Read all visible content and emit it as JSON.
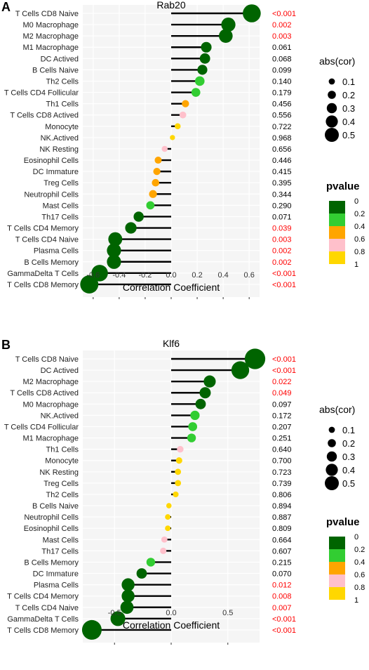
{
  "charts": [
    {
      "panel_label": "A",
      "title": "Rab20",
      "xlabel": "Correlation Coefficient",
      "x_ticks": [
        "-0.6",
        "-0.4",
        "-0.2",
        "0.0",
        "0.2",
        "0.4",
        "0.6"
      ]
    },
    {
      "panel_label": "B",
      "title": "Klf6",
      "xlabel": "Correlation Coefficient",
      "x_ticks": [
        "-0.5",
        "0.0",
        "0.5"
      ]
    }
  ],
  "legend_size": {
    "title": "abs(cor)",
    "labels": [
      "0.1",
      "0.2",
      "0.3",
      "0.4",
      "0.5"
    ]
  },
  "legend_color": {
    "title": "pvalue",
    "labels": [
      "0",
      "0.2",
      "0.4",
      "0.6",
      "0.8",
      "1"
    ],
    "colors": [
      "#006400",
      "#32cd32",
      "#ffa500",
      "#ffc0cb",
      "#ffd700"
    ]
  },
  "colors": {
    "panel_bg": "#f5f5f5",
    "grid": "#ffffff",
    "stem": "#000000",
    "significant_p": "#ff0000",
    "normal_p": "#000000"
  },
  "chart_data": [
    {
      "type": "lollipop",
      "title": "Rab20",
      "xlabel": "Correlation Coefficient",
      "xlim": [
        -0.68,
        0.68
      ],
      "categories": [
        "T Cells CD8 Naive",
        "M0 Macrophage",
        "M2 Macrophage",
        "M1 Macrophage",
        "DC Actived",
        "B Cells Naive",
        "Th2 Cells",
        "T Cells CD4 Follicular",
        "Th1 Cells",
        "T Cells CD8 Actived",
        "Monocyte",
        "NK.Actived",
        "NK Resting",
        "Eosinophil Cells",
        "DC Immature",
        "Treg Cells",
        "Neutrophil Cells",
        "Mast Cells",
        "Th17 Cells",
        "T Cells CD4 Memory",
        "T Cells CD4 Naive",
        "Plasma Cells",
        "B Cells Memory",
        "GammaDelta T Cells",
        "T Cells CD8 Memory"
      ],
      "values": [
        0.62,
        0.44,
        0.42,
        0.27,
        0.26,
        0.24,
        0.22,
        0.19,
        0.11,
        0.09,
        0.05,
        0.01,
        -0.05,
        -0.1,
        -0.11,
        -0.12,
        -0.14,
        -0.16,
        -0.25,
        -0.31,
        -0.43,
        -0.44,
        -0.44,
        -0.55,
        -0.63
      ],
      "pvalues": [
        "<0.001",
        "0.002",
        "0.003",
        "0.061",
        "0.068",
        "0.099",
        "0.140",
        "0.179",
        "0.456",
        "0.556",
        "0.722",
        "0.968",
        "0.656",
        "0.446",
        "0.415",
        "0.395",
        "0.344",
        "0.290",
        "0.071",
        "0.039",
        "0.003",
        "0.002",
        "0.002",
        "<0.001",
        "<0.001"
      ]
    },
    {
      "type": "lollipop",
      "title": "Klf6",
      "xlabel": "Correlation Coefficient",
      "xlim": [
        -0.78,
        0.78
      ],
      "categories": [
        "T Cells CD8 Naive",
        "DC Actived",
        "M2 Macrophage",
        "T Cells CD8 Actived",
        "M0 Macrophage",
        "NK.Actived",
        "T Cells CD4 Follicular",
        "M1 Macrophage",
        "Th1 Cells",
        "Monocyte",
        "NK Resting",
        "Treg Cells",
        "Th2 Cells",
        "B Cells Naive",
        "Neutrophil Cells",
        "Eosinophil Cells",
        "Mast Cells",
        "Th17 Cells",
        "B Cells Memory",
        "DC Immature",
        "Plasma Cells",
        "T Cells CD4 Memory",
        "T Cells CD4 Naive",
        "GammaDelta T Cells",
        "T Cells CD8 Memory"
      ],
      "values": [
        0.74,
        0.61,
        0.34,
        0.3,
        0.26,
        0.21,
        0.19,
        0.18,
        0.08,
        0.07,
        0.06,
        0.06,
        0.04,
        -0.02,
        -0.03,
        -0.03,
        -0.06,
        -0.07,
        -0.18,
        -0.26,
        -0.38,
        -0.38,
        -0.39,
        -0.47,
        -0.7
      ],
      "pvalues": [
        "<0.001",
        "<0.001",
        "0.022",
        "0.049",
        "0.097",
        "0.172",
        "0.207",
        "0.251",
        "0.640",
        "0.700",
        "0.723",
        "0.739",
        "0.806",
        "0.894",
        "0.887",
        "0.809",
        "0.664",
        "0.607",
        "0.215",
        "0.070",
        "0.012",
        "0.008",
        "0.007",
        "<0.001",
        "<0.001"
      ]
    }
  ]
}
